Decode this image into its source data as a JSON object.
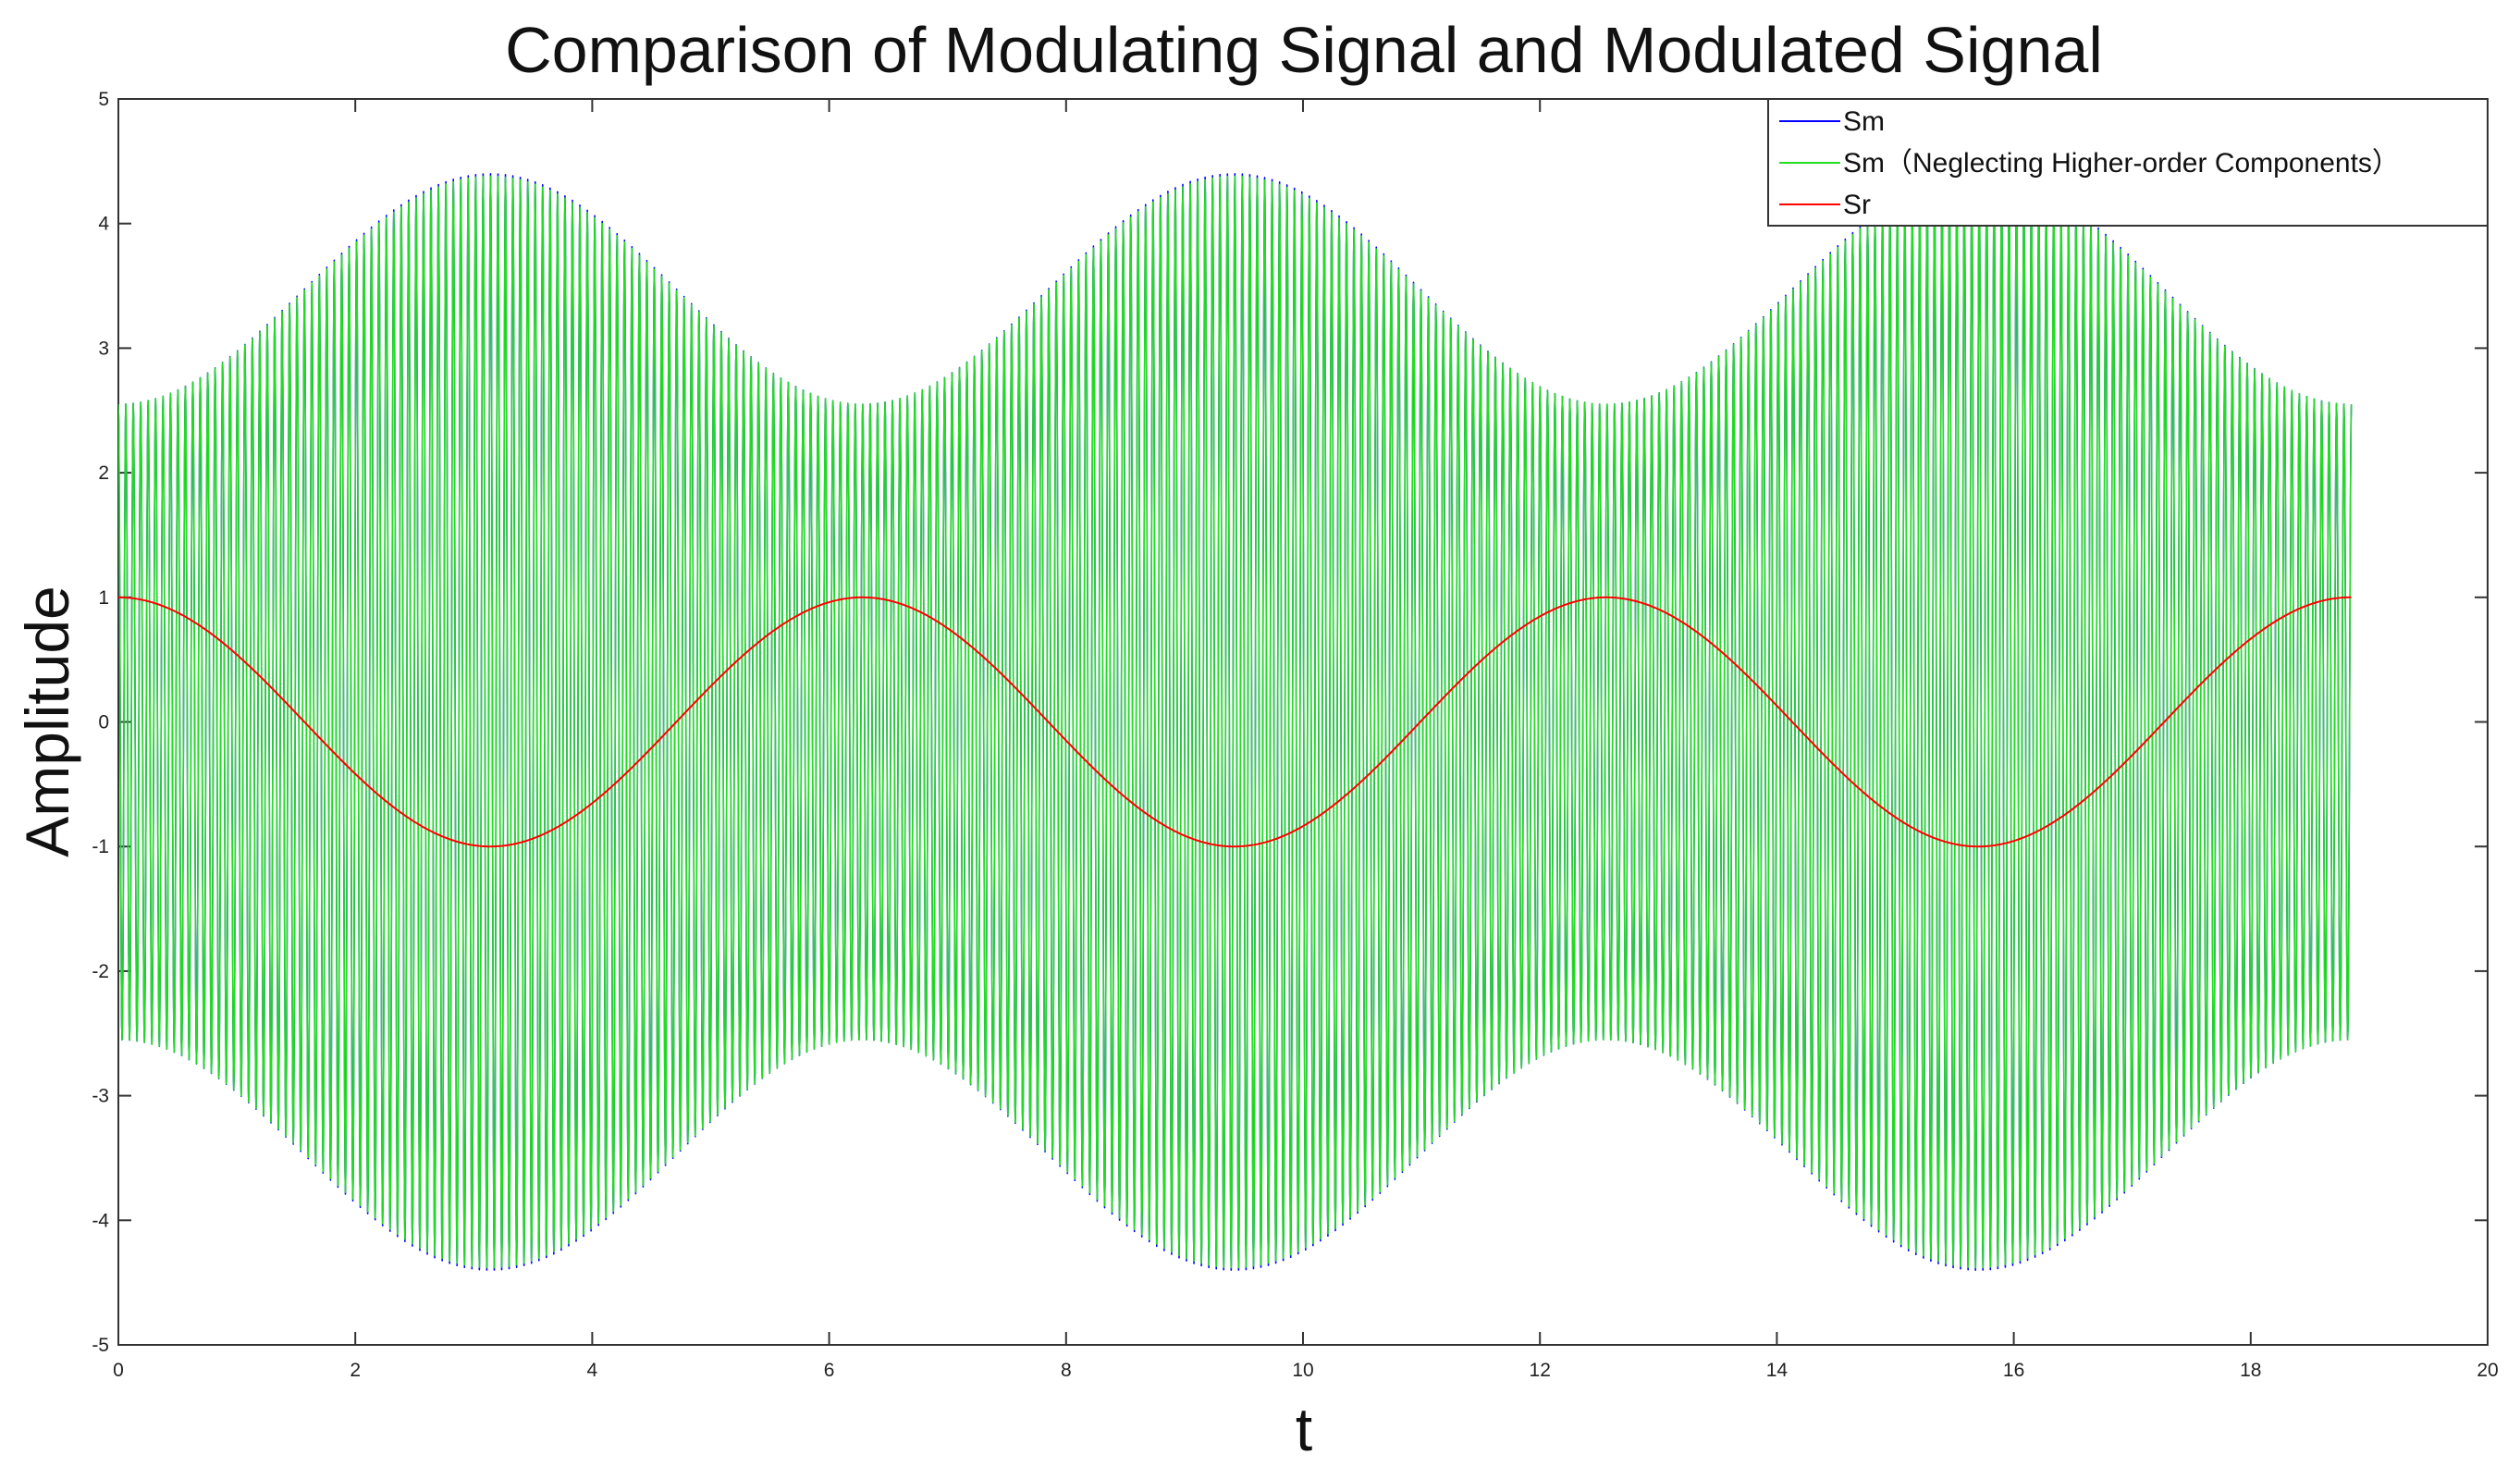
{
  "chart_data": {
    "type": "line",
    "title": "Comparison of Modulating Signal and Modulated Signal",
    "xlabel": "t",
    "ylabel": "Amplitude",
    "xlim": [
      0,
      20
    ],
    "ylim": [
      -5,
      5
    ],
    "x_ticks": [
      "0",
      "2",
      "4",
      "6",
      "8",
      "10",
      "12",
      "14",
      "16",
      "18",
      "20"
    ],
    "y_ticks": [
      "5",
      "4",
      "3",
      "2",
      "1",
      "0",
      "-1",
      "-2",
      "-3",
      "-4",
      "-5"
    ],
    "x_range": [
      0,
      18.85
    ],
    "grid": false,
    "legend_position": "top-right",
    "series": [
      {
        "name": "Sm",
        "color": "#0000ff",
        "kind": "modulated",
        "envelope_min": 2.55,
        "envelope_max": 4.4,
        "envelope_minima_t": [
          0,
          6.28,
          12.57,
          18.85
        ],
        "envelope_maxima_t": [
          3.14,
          9.42,
          15.71
        ],
        "cycles": 300
      },
      {
        "name": "Sm（Neglecting Higher-order Components）",
        "color": "#22dd22",
        "kind": "modulated",
        "envelope_min": 2.55,
        "envelope_max": 4.38,
        "envelope_minima_t": [
          0,
          6.28,
          12.57,
          18.85
        ],
        "envelope_maxima_t": [
          3.14,
          9.42,
          15.71
        ],
        "cycles": 300
      },
      {
        "name": "Sr",
        "color": "#ff0000",
        "kind": "cosine",
        "amplitude": 1,
        "max_t": [
          0,
          6.28,
          12.57,
          18.85
        ],
        "min_t": [
          3.14,
          9.42,
          15.71
        ],
        "min_value": -1,
        "max_value": 1
      }
    ]
  }
}
